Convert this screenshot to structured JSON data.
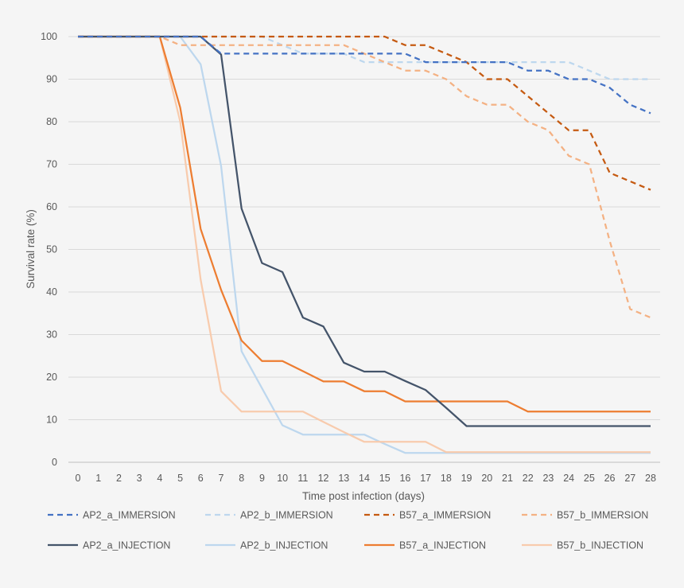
{
  "chart_data": {
    "type": "line",
    "title": "",
    "xlabel": "Time post infection (days)",
    "ylabel": "Survival rate (%)",
    "xlim": [
      0,
      28
    ],
    "ylim": [
      0,
      100
    ],
    "x_ticks": [
      "0",
      "1",
      "2",
      "3",
      "4",
      "5",
      "6",
      "7",
      "8",
      "9",
      "10",
      "11",
      "12",
      "13",
      "14",
      "15",
      "16",
      "17",
      "18",
      "19",
      "20",
      "21",
      "22",
      "23",
      "24",
      "25",
      "26",
      "27",
      "28"
    ],
    "y_ticks": [
      "0",
      "10",
      "20",
      "30",
      "40",
      "50",
      "60",
      "70",
      "80",
      "90",
      "100"
    ],
    "grid": "horizontal",
    "legend_position": "bottom",
    "x": [
      0,
      1,
      2,
      3,
      4,
      5,
      6,
      7,
      8,
      9,
      10,
      11,
      12,
      13,
      14,
      15,
      16,
      17,
      18,
      19,
      20,
      21,
      22,
      23,
      24,
      25,
      26,
      27,
      28
    ],
    "series": [
      {
        "name": "AP2_a_IMMERSION",
        "color": "#4472c4",
        "dash": "dashed",
        "values": [
          100,
          100,
          100,
          100,
          100,
          100,
          100,
          96,
          96,
          96,
          96,
          96,
          96,
          96,
          96,
          96,
          96,
          94,
          94,
          94,
          94,
          94,
          92,
          92,
          90,
          90,
          88,
          84,
          82
        ]
      },
      {
        "name": "AP2_b_IMMERSION",
        "color": "#bdd7ee",
        "dash": "dashed",
        "values": [
          100,
          100,
          100,
          100,
          100,
          100,
          100,
          100,
          100,
          100,
          98,
          96,
          96,
          96,
          94,
          94,
          94,
          94,
          94,
          94,
          94,
          94,
          94,
          94,
          94,
          92,
          90,
          90,
          90
        ]
      },
      {
        "name": "B57_a_IMMERSION",
        "color": "#c55a11",
        "dash": "dashed",
        "values": [
          100,
          100,
          100,
          100,
          100,
          100,
          100,
          100,
          100,
          100,
          100,
          100,
          100,
          100,
          100,
          100,
          98,
          98,
          96,
          94,
          90,
          90,
          86,
          82,
          78,
          78,
          68,
          66,
          64
        ]
      },
      {
        "name": "B57_b_IMMERSION",
        "color": "#f4b183",
        "dash": "dashed",
        "values": [
          100,
          100,
          100,
          100,
          100,
          98,
          98,
          98,
          98,
          98,
          98,
          98,
          98,
          98,
          96,
          94,
          92,
          92,
          90,
          86,
          84,
          84,
          80,
          78,
          72,
          70,
          52,
          36,
          34
        ]
      },
      {
        "name": "AP2_a_INJECTION",
        "color": "#44546a",
        "dash": "solid",
        "values": [
          100,
          100,
          100,
          100,
          100,
          100,
          100,
          95.8,
          59.6,
          46.8,
          44.7,
          34,
          31.9,
          23.4,
          21.3,
          21.3,
          19.1,
          17,
          12.8,
          8.5,
          8.5,
          8.5,
          8.5,
          8.5,
          8.5,
          8.5,
          8.5,
          8.5,
          8.5
        ]
      },
      {
        "name": "AP2_b_INJECTION",
        "color": "#bdd7ee",
        "dash": "solid",
        "values": [
          100,
          100,
          100,
          100,
          100,
          100,
          93.5,
          69.6,
          26.1,
          17.4,
          8.7,
          6.5,
          6.5,
          6.5,
          6.5,
          4.3,
          2.2,
          2.2,
          2.2,
          2.2,
          2.2,
          2.2,
          2.2,
          2.2,
          2.2,
          2.2,
          2.2,
          2.2,
          2.2
        ]
      },
      {
        "name": "B57_a_INJECTION",
        "color": "#ed7d31",
        "dash": "solid",
        "values": [
          100,
          100,
          100,
          100,
          100,
          83.3,
          54.8,
          40.5,
          28.6,
          23.8,
          23.8,
          21.4,
          19,
          19,
          16.7,
          16.7,
          14.3,
          14.3,
          14.3,
          14.3,
          14.3,
          14.3,
          11.9,
          11.9,
          11.9,
          11.9,
          11.9,
          11.9,
          11.9
        ]
      },
      {
        "name": "B57_b_INJECTION",
        "color": "#f8cbad",
        "dash": "solid",
        "values": [
          100,
          100,
          100,
          100,
          100,
          80,
          42.9,
          16.7,
          11.9,
          11.9,
          11.9,
          11.9,
          9.5,
          7.1,
          4.8,
          4.8,
          4.8,
          4.8,
          2.4,
          2.4,
          2.4,
          2.4,
          2.4,
          2.4,
          2.4,
          2.4,
          2.4,
          2.4,
          2.4
        ]
      }
    ]
  }
}
